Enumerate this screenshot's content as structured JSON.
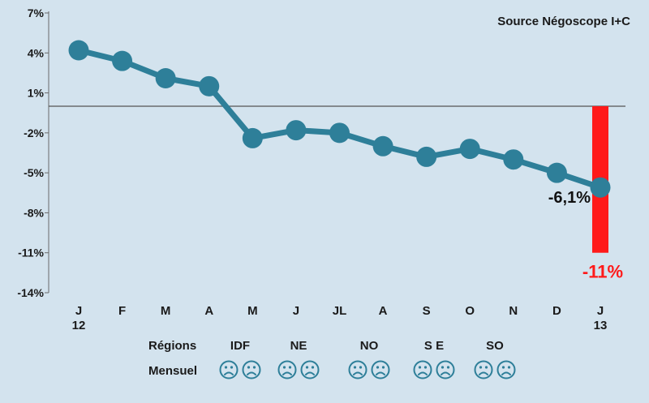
{
  "chart_data": {
    "type": "line",
    "title": "",
    "source_note": "Source Négoscope I+C",
    "xlabel": "",
    "ylabel": "",
    "categories": [
      "J\n12",
      "F",
      "M",
      "A",
      "M",
      "J",
      "JL",
      "A",
      "S",
      "O",
      "N",
      "D",
      "J\n13"
    ],
    "series": [
      {
        "values": [
          4.2,
          3.4,
          2.1,
          1.5,
          -2.4,
          -1.8,
          -2.0,
          -3.0,
          -3.8,
          -3.2,
          -4.0,
          -5.0,
          -6.1
        ],
        "color": "#2e7f99"
      }
    ],
    "ylim": [
      -14,
      7
    ],
    "yticks": [
      7,
      4,
      1,
      -2,
      -5,
      -8,
      -11,
      -14
    ],
    "ytick_labels": [
      "7%",
      "4%",
      "1%",
      "-2%",
      "-5%",
      "-8%",
      "-11%",
      "-14%"
    ],
    "reference_line": 0,
    "highlight_bar": {
      "category_index": 12,
      "value": -11,
      "label": "-11%",
      "color": "#ff1a1a"
    },
    "point_label": {
      "index": 12,
      "text": "-6,1%"
    },
    "grid": false
  },
  "legend_rows": {
    "regions_label": "Régions",
    "monthly_label": "Mensuel",
    "regions": [
      "IDF",
      "NE",
      "NO",
      "S E",
      "SO"
    ],
    "faces_per_region": 2,
    "face_icon": "sad-face-icon",
    "face_color": "#2e7f99"
  }
}
